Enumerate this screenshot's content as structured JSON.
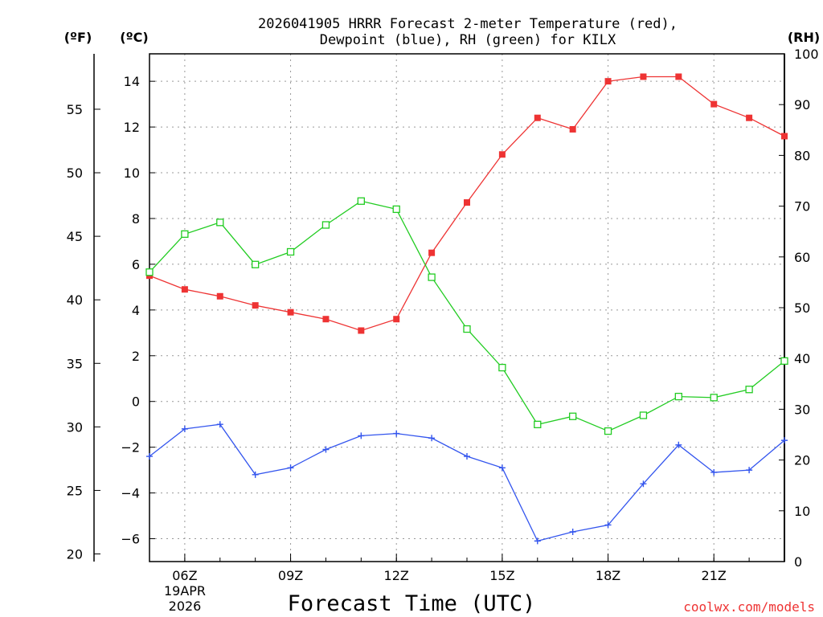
{
  "chart_data": {
    "type": "line",
    "title": "2026041905 HRRR Forecast 2-meter Temperature (red),",
    "subtitle": "Dewpoint (blue), RH (green) for KILX",
    "xlabel": "Forecast Time (UTC)",
    "unit_f": "(ºF)",
    "unit_c": "(ºC)",
    "unit_rh": "(RH)",
    "watermark": "coolwx.com/models",
    "date_line1": "19APR",
    "date_line2": "2026",
    "hours": [
      5,
      6,
      7,
      8,
      9,
      10,
      11,
      12,
      13,
      14,
      15,
      16,
      17,
      18,
      19,
      20,
      21,
      22,
      23
    ],
    "x_ticks": [
      {
        "hour": 6,
        "label": "06Z"
      },
      {
        "hour": 9,
        "label": "09Z"
      },
      {
        "hour": 12,
        "label": "12Z"
      },
      {
        "hour": 15,
        "label": "15Z"
      },
      {
        "hour": 18,
        "label": "18Z"
      },
      {
        "hour": 21,
        "label": "21Z"
      }
    ],
    "ylim_c": [
      -7,
      15.2
    ],
    "ylim_rh": [
      0,
      100
    ],
    "yticks_c": [
      -6,
      -4,
      -2,
      0,
      2,
      4,
      6,
      8,
      10,
      12,
      14
    ],
    "yticks_f": [
      20,
      25,
      30,
      35,
      40,
      45,
      50,
      55
    ],
    "yticks_rh": [
      0,
      10,
      20,
      30,
      40,
      50,
      60,
      70,
      80,
      90,
      100
    ],
    "colors": {
      "temperature": "#ee3333",
      "dewpoint": "#3355ee",
      "rh": "#22cc22"
    },
    "series": [
      {
        "name": "Temperature",
        "axis": "c",
        "marker": "filled-square",
        "values": [
          5.5,
          4.9,
          4.6,
          4.2,
          3.9,
          3.6,
          3.1,
          3.6,
          6.5,
          8.7,
          10.8,
          12.4,
          11.9,
          14.0,
          14.2,
          14.2,
          13.0,
          12.4,
          11.6
        ]
      },
      {
        "name": "Dewpoint",
        "axis": "c",
        "marker": "plus",
        "values": [
          -2.4,
          -1.2,
          -1.0,
          -3.2,
          -2.9,
          -2.1,
          -1.5,
          -1.4,
          -1.6,
          -2.4,
          -2.9,
          -6.1,
          -5.7,
          -5.4,
          -3.6,
          -1.9,
          -3.1,
          -3.0,
          -1.7
        ]
      },
      {
        "name": "RH",
        "axis": "rh",
        "marker": "open-square",
        "values": [
          57.0,
          64.5,
          66.8,
          58.5,
          61.0,
          66.3,
          71.0,
          69.4,
          56.0,
          45.8,
          38.2,
          27.0,
          28.6,
          25.7,
          28.8,
          32.5,
          32.3,
          33.9,
          39.5
        ]
      }
    ]
  }
}
